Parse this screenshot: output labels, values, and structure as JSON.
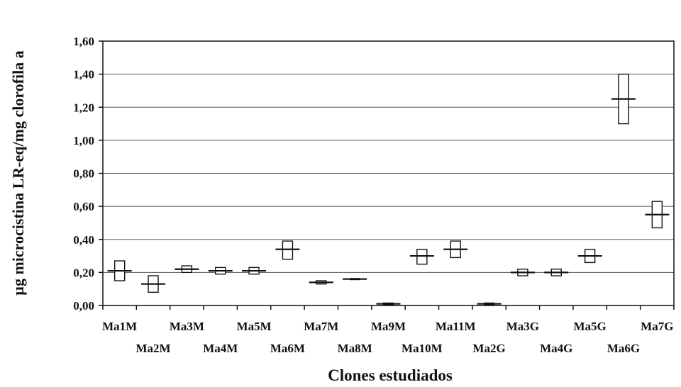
{
  "chart_data": {
    "type": "box",
    "title": "",
    "xlabel": "Clones estudiados",
    "ylabel": "µg microcistina LR-eq/mg clorofila a",
    "ylim": [
      0,
      1.6
    ],
    "y_ticks": [
      "0,00",
      "0,20",
      "0,40",
      "0,60",
      "0,80",
      "1,00",
      "1,20",
      "1,40",
      "1,60"
    ],
    "y_tick_values": [
      0,
      0.2,
      0.4,
      0.6,
      0.8,
      1.0,
      1.2,
      1.4,
      1.6
    ],
    "grid": true,
    "categories": [
      "Ma1M",
      "Ma2M",
      "Ma3M",
      "Ma4M",
      "Ma5M",
      "Ma6M",
      "Ma7M",
      "Ma8M",
      "Ma9M",
      "Ma10M",
      "Ma11M",
      "Ma2G",
      "Ma3G",
      "Ma4G",
      "Ma5G",
      "Ma6G",
      "Ma7G"
    ],
    "series": [
      {
        "values": [
          {
            "low": 0.15,
            "high": 0.27,
            "median": 0.21
          },
          {
            "low": 0.08,
            "high": 0.18,
            "median": 0.13
          },
          {
            "low": 0.2,
            "high": 0.24,
            "median": 0.22
          },
          {
            "low": 0.19,
            "high": 0.23,
            "median": 0.21
          },
          {
            "low": 0.19,
            "high": 0.23,
            "median": 0.21
          },
          {
            "low": 0.28,
            "high": 0.39,
            "median": 0.34
          },
          {
            "low": 0.13,
            "high": 0.15,
            "median": 0.14
          },
          {
            "low": 0.16,
            "high": 0.16,
            "median": 0.16
          },
          {
            "low": 0.005,
            "high": 0.015,
            "median": 0.01
          },
          {
            "low": 0.25,
            "high": 0.34,
            "median": 0.3
          },
          {
            "low": 0.29,
            "high": 0.39,
            "median": 0.34
          },
          {
            "low": 0.005,
            "high": 0.015,
            "median": 0.01
          },
          {
            "low": 0.18,
            "high": 0.22,
            "median": 0.2
          },
          {
            "low": 0.18,
            "high": 0.22,
            "median": 0.2
          },
          {
            "low": 0.26,
            "high": 0.34,
            "median": 0.3
          },
          {
            "low": 1.1,
            "high": 1.4,
            "median": 1.25
          },
          {
            "low": 0.47,
            "high": 0.63,
            "median": 0.55
          }
        ]
      }
    ]
  }
}
